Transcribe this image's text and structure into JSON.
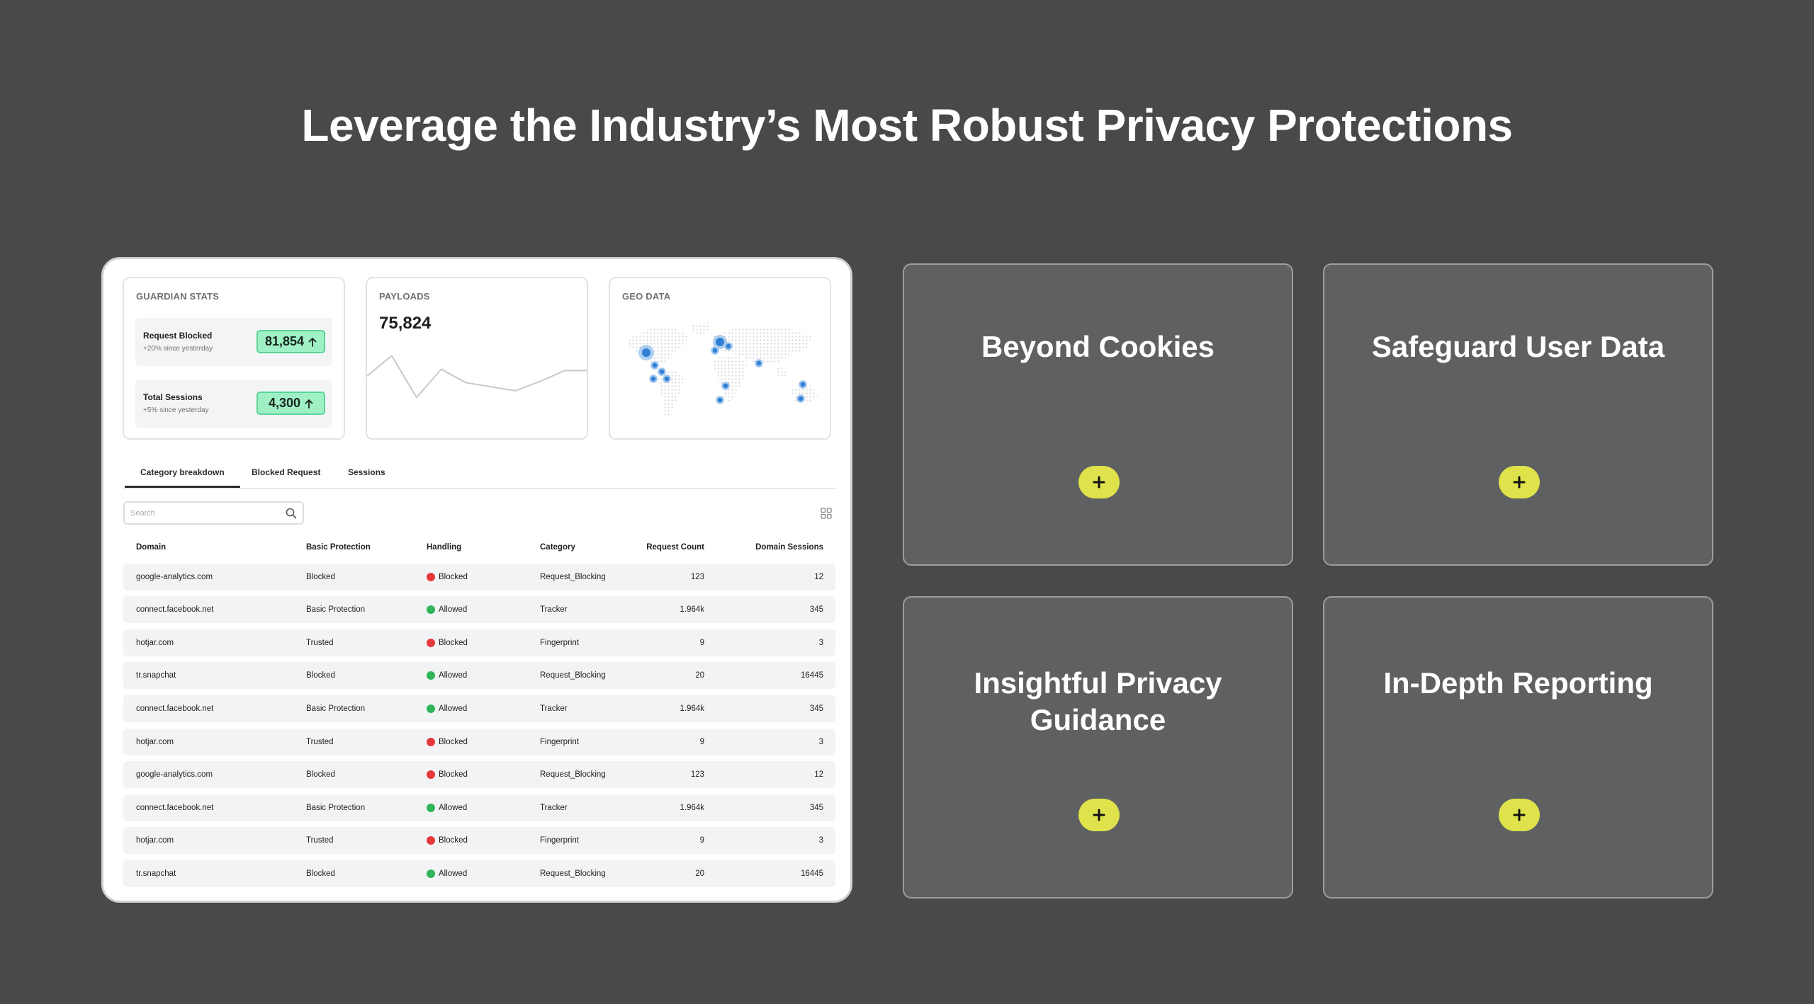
{
  "hero": {
    "title": "Leverage the Industry’s Most Robust Privacy Protections"
  },
  "dashboard": {
    "guardian": {
      "title": "GUARDIAN STATS",
      "stats": [
        {
          "label": "Request Blocked",
          "sub": "+20% since yesterday",
          "value": "81,854"
        },
        {
          "label": "Total Sessions",
          "sub": "+5% since yesterday",
          "value": "4,300"
        }
      ]
    },
    "payloads": {
      "title": "PAYLOADS",
      "value": "75,824",
      "sparkline": [
        40,
        10,
        72,
        30,
        50,
        56,
        62,
        48,
        32,
        32
      ]
    },
    "geo": {
      "title": "GEO DATA"
    },
    "tabs": [
      "Category breakdown",
      "Blocked Request",
      "Sessions"
    ],
    "active_tab": "Category breakdown",
    "search": {
      "placeholder": "Search"
    },
    "table": {
      "columns": [
        "Domain",
        "Basic Protection",
        "Handling",
        "Category",
        "Request Count",
        "Domain Sessions"
      ],
      "rows": [
        [
          "google-analytics.com",
          "Blocked",
          "Blocked",
          "Request_Blocking",
          "123",
          "12"
        ],
        [
          "connect.facebook.net",
          "Basic Protection",
          "Allowed",
          "Tracker",
          "1.964k",
          "345"
        ],
        [
          "hotjar.com",
          "Trusted",
          "Blocked",
          "Fingerprint",
          "9",
          "3"
        ],
        [
          "tr.snapchat",
          "Blocked",
          "Allowed",
          "Request_Blocking",
          "20",
          "16445"
        ],
        [
          "connect.facebook.net",
          "Basic Protection",
          "Allowed",
          "Tracker",
          "1.964k",
          "345"
        ],
        [
          "hotjar.com",
          "Trusted",
          "Blocked",
          "Fingerprint",
          "9",
          "3"
        ],
        [
          "google-analytics.com",
          "Blocked",
          "Blocked",
          "Request_Blocking",
          "123",
          "12"
        ],
        [
          "connect.facebook.net",
          "Basic Protection",
          "Allowed",
          "Tracker",
          "1.964k",
          "345"
        ],
        [
          "hotjar.com",
          "Trusted",
          "Blocked",
          "Fingerprint",
          "9",
          "3"
        ],
        [
          "tr.snapchat",
          "Blocked",
          "Allowed",
          "Request_Blocking",
          "20",
          "16445"
        ]
      ]
    },
    "status_colors": {
      "Blocked": "#e5383b",
      "Allowed": "#2fb45a"
    }
  },
  "features": [
    {
      "title": "Beyond Cookies"
    },
    {
      "title": "Safeguard User Data"
    },
    {
      "title": "Insightful Privacy Guidance"
    },
    {
      "title": "In-Depth Reporting"
    }
  ],
  "icons": {
    "add": "plus-icon",
    "arrow": "arrow-up-icon",
    "search": "search-icon",
    "grid": "grid-icon"
  },
  "colors": {
    "background": "#48494b",
    "accent": "#dfe24a",
    "pill": "#9ff0c5"
  }
}
